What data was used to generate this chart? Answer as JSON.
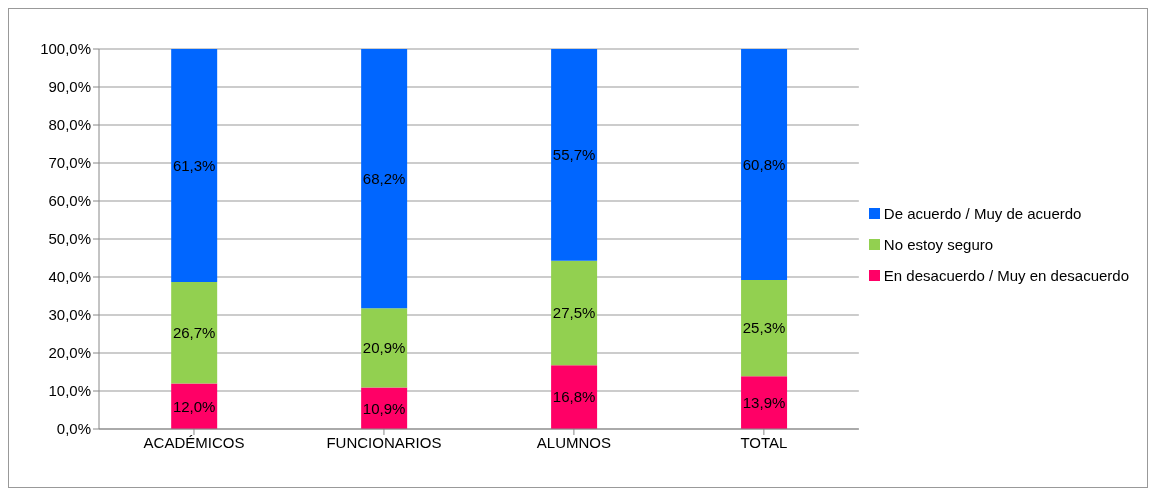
{
  "chart_data": {
    "type": "bar",
    "stacked": true,
    "categories": [
      "ACADÉMICOS",
      "FUNCIONARIOS",
      "ALUMNOS",
      "TOTAL"
    ],
    "series": [
      {
        "name": "En desacuerdo / Muy en desacuerdo",
        "color": "#ff0066",
        "values": [
          12.0,
          10.9,
          16.8,
          13.9
        ],
        "value_labels": [
          "12,0%",
          "10,9%",
          "16,8%",
          "13,9%"
        ]
      },
      {
        "name": "No estoy seguro",
        "color": "#92d050",
        "values": [
          26.7,
          20.9,
          27.5,
          25.3
        ],
        "value_labels": [
          "26,7%",
          "20,9%",
          "27,5%",
          "25,3%"
        ]
      },
      {
        "name": "De acuerdo / Muy de acuerdo",
        "color": "#0066ff",
        "values": [
          61.3,
          68.2,
          55.7,
          60.8
        ],
        "value_labels": [
          "61,3%",
          "68,2%",
          "55,7%",
          "60,8%"
        ]
      }
    ],
    "ylim": [
      0,
      100
    ],
    "yticks": [
      {
        "value": 0,
        "label": "0,0%"
      },
      {
        "value": 10,
        "label": "10,0%"
      },
      {
        "value": 20,
        "label": "20,0%"
      },
      {
        "value": 30,
        "label": "30,0%"
      },
      {
        "value": 40,
        "label": "40,0%"
      },
      {
        "value": 50,
        "label": "50,0%"
      },
      {
        "value": 60,
        "label": "60,0%"
      },
      {
        "value": 70,
        "label": "70,0%"
      },
      {
        "value": 80,
        "label": "80,0%"
      },
      {
        "value": 90,
        "label": "90,0%"
      },
      {
        "value": 100,
        "label": "100,0%"
      }
    ],
    "grid": "y",
    "legend": "right"
  }
}
